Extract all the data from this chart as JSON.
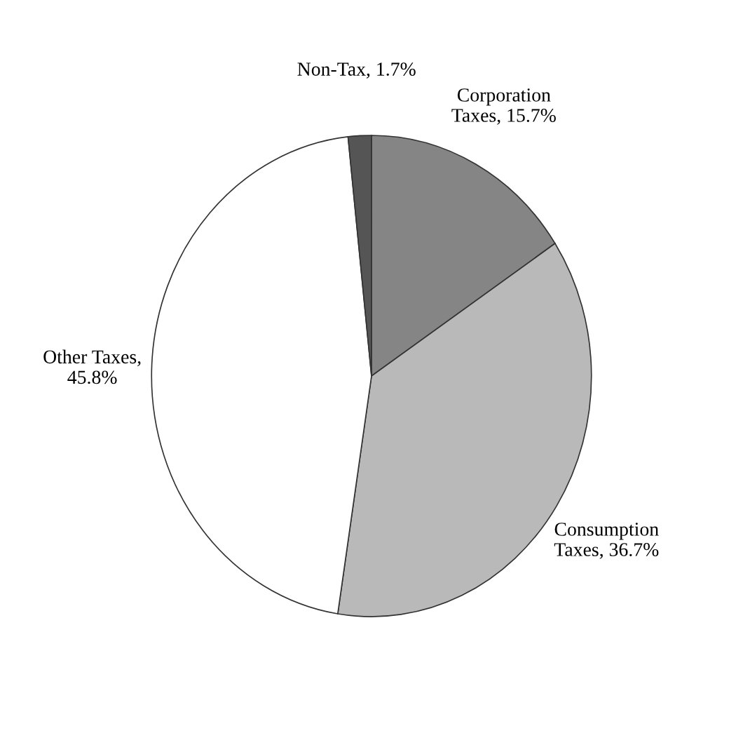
{
  "chart_data": {
    "type": "pie",
    "categories": [
      "Corporation\nTaxes, 15.7%",
      "Consumption\nTaxes, 36.7%",
      "Other Taxes,\n45.8%",
      "Non-Tax, 1.7%"
    ],
    "values": [
      15.7,
      36.7,
      45.8,
      1.7
    ],
    "colors": [
      "#858585",
      "#b9b9b9",
      "#ffffff",
      "#555555"
    ]
  }
}
